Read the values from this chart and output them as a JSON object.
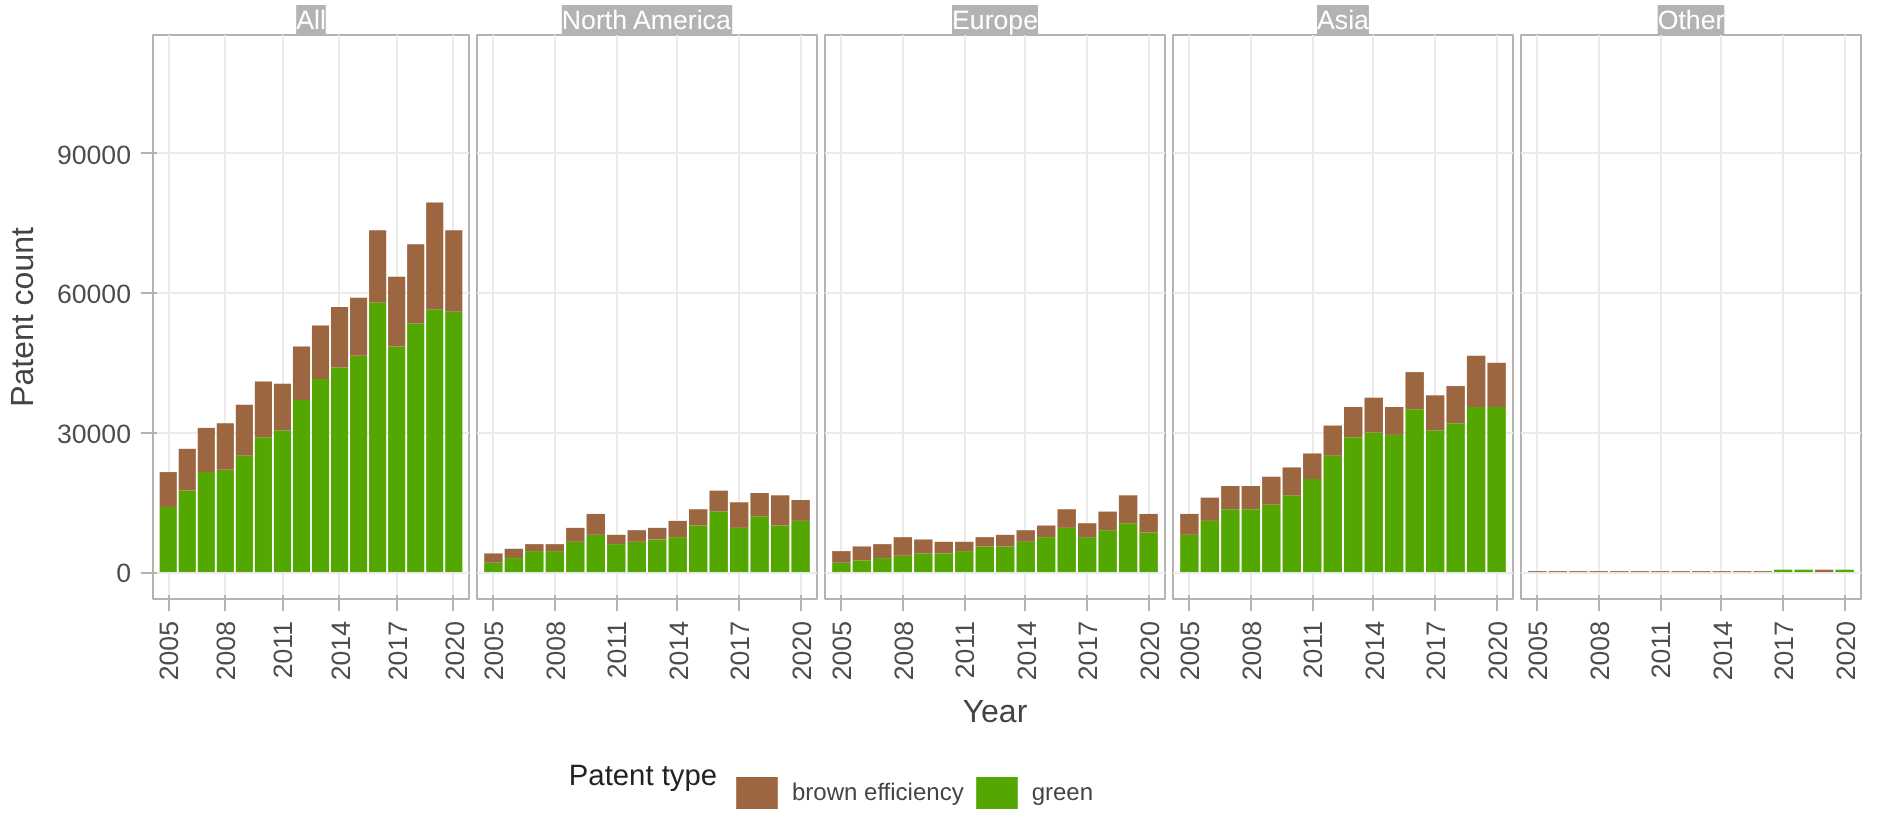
{
  "chart_data": [
    {
      "type": "bar",
      "title": "All",
      "ylabel": "Patent count",
      "legend_title": "Patent type",
      "legend": "bottom",
      "stacked": true,
      "grid": true,
      "x": [
        2005,
        2006,
        2007,
        2008,
        2009,
        2010,
        2011,
        2012,
        2013,
        2014,
        2015,
        2016,
        2017,
        2018,
        2019,
        2020
      ],
      "xlim": [
        2004.2,
        2020.8
      ],
      "xticks": [
        2005,
        2008,
        2011,
        2014,
        2017,
        2020
      ],
      "ylim": [
        -5800,
        115500
      ],
      "yticks": [
        0,
        30000,
        60000,
        90000
      ],
      "series": [
        {
          "name": "green",
          "color": "#53a700",
          "values": [
            14000,
            17500,
            21500,
            22000,
            25000,
            29000,
            30500,
            37000,
            41500,
            44000,
            46500,
            58000,
            48500,
            53500,
            56500,
            56000
          ]
        },
        {
          "name": "brown efficiency",
          "color": "#9c6640",
          "values": [
            7500,
            9000,
            9500,
            10000,
            11000,
            12000,
            10000,
            11500,
            11500,
            13000,
            12500,
            15500,
            15000,
            17000,
            23000,
            17500
          ]
        }
      ]
    },
    {
      "type": "bar",
      "title": "North America",
      "stacked": true,
      "grid": true,
      "tick_labels": "x",
      "x": [
        2005,
        2006,
        2007,
        2008,
        2009,
        2010,
        2011,
        2012,
        2013,
        2014,
        2015,
        2016,
        2017,
        2018,
        2019,
        2020
      ],
      "xlim": [
        2004.2,
        2020.8
      ],
      "xticks": [
        2005,
        2008,
        2011,
        2014,
        2017,
        2020
      ],
      "ylim": [
        -5800,
        115500
      ],
      "series": [
        {
          "color": "#53a700",
          "values": [
            2000,
            3000,
            4500,
            4500,
            6500,
            8000,
            6000,
            6500,
            7000,
            7500,
            10000,
            13000,
            9500,
            12000,
            10000,
            11000
          ]
        },
        {
          "color": "#9c6640",
          "values": [
            2000,
            2000,
            1500,
            1500,
            3000,
            4500,
            2000,
            2500,
            2500,
            3500,
            3500,
            4500,
            5500,
            5000,
            6500,
            4500
          ]
        }
      ]
    },
    {
      "type": "bar",
      "title": "Europe",
      "xlabel": "Year",
      "stacked": true,
      "grid": true,
      "tick_labels": "x",
      "x": [
        2005,
        2006,
        2007,
        2008,
        2009,
        2010,
        2011,
        2012,
        2013,
        2014,
        2015,
        2016,
        2017,
        2018,
        2019,
        2020
      ],
      "xlim": [
        2004.2,
        2020.8
      ],
      "xticks": [
        2005,
        2008,
        2011,
        2014,
        2017,
        2020
      ],
      "ylim": [
        -5800,
        115500
      ],
      "series": [
        {
          "color": "#53a700",
          "values": [
            2000,
            2500,
            3000,
            3500,
            4000,
            4000,
            4500,
            5500,
            5500,
            6500,
            7500,
            9500,
            7500,
            9000,
            10500,
            8500
          ]
        },
        {
          "color": "#9c6640",
          "values": [
            2500,
            3000,
            3000,
            4000,
            3000,
            2500,
            2000,
            2000,
            2500,
            2500,
            2500,
            4000,
            3000,
            4000,
            6000,
            4000
          ]
        }
      ]
    },
    {
      "type": "bar",
      "title": "Asia",
      "stacked": true,
      "grid": true,
      "tick_labels": "x",
      "x": [
        2005,
        2006,
        2007,
        2008,
        2009,
        2010,
        2011,
        2012,
        2013,
        2014,
        2015,
        2016,
        2017,
        2018,
        2019,
        2020
      ],
      "xlim": [
        2004.2,
        2020.8
      ],
      "xticks": [
        2005,
        2008,
        2011,
        2014,
        2017,
        2020
      ],
      "ylim": [
        -5800,
        115500
      ],
      "series": [
        {
          "color": "#53a700",
          "values": [
            8000,
            11000,
            13500,
            13500,
            14500,
            16500,
            20000,
            25000,
            29000,
            30000,
            29500,
            35000,
            30500,
            32000,
            35500,
            35500
          ]
        },
        {
          "color": "#9c6640",
          "values": [
            4500,
            5000,
            5000,
            5000,
            6000,
            6000,
            5500,
            6500,
            6500,
            7500,
            6000,
            8000,
            7500,
            8000,
            11000,
            9500
          ]
        }
      ]
    },
    {
      "type": "bar",
      "title": "Other",
      "stacked": true,
      "grid": true,
      "tick_labels": "x",
      "x": [
        2005,
        2006,
        2007,
        2008,
        2009,
        2010,
        2011,
        2012,
        2013,
        2014,
        2015,
        2016,
        2017,
        2018,
        2019,
        2020
      ],
      "xlim": [
        2004.2,
        2020.8
      ],
      "xticks": [
        2005,
        2008,
        2011,
        2014,
        2017,
        2020
      ],
      "ylim": [
        -5800,
        115500
      ],
      "series": [
        {
          "color": "#53a700",
          "values": [
            0,
            0,
            0,
            0,
            0,
            0,
            0,
            0,
            0,
            0,
            0,
            0,
            500,
            500,
            0,
            500
          ]
        },
        {
          "color": "#9c6640",
          "values": [
            200,
            200,
            200,
            200,
            200,
            200,
            200,
            200,
            200,
            200,
            200,
            200,
            0,
            0,
            500,
            0
          ]
        }
      ]
    }
  ]
}
